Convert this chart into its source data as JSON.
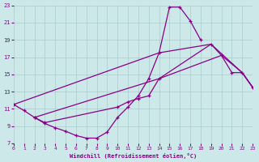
{
  "xlabel": "Windchill (Refroidissement éolien,°C)",
  "xlim": [
    0,
    23
  ],
  "ylim": [
    7,
    23
  ],
  "xticks": [
    0,
    1,
    2,
    3,
    4,
    5,
    6,
    7,
    8,
    9,
    10,
    11,
    12,
    13,
    14,
    15,
    16,
    17,
    18,
    19,
    20,
    21,
    22,
    23
  ],
  "yticks": [
    7,
    9,
    11,
    13,
    15,
    17,
    19,
    21,
    23
  ],
  "bg_color": "#cce8e8",
  "grid_color": "#aacccc",
  "line_color": "#880088",
  "line1_x": [
    0,
    1,
    2,
    3,
    4,
    5,
    6,
    7,
    8,
    9,
    10,
    11,
    12,
    13,
    14,
    15,
    16,
    17,
    18
  ],
  "line1_y": [
    11.5,
    10.8,
    10.0,
    9.3,
    8.8,
    8.4,
    7.9,
    7.6,
    7.6,
    8.3,
    10.0,
    11.2,
    12.5,
    14.5,
    17.5,
    22.8,
    22.8,
    21.2,
    19.0
  ],
  "line2_x": [
    2,
    3,
    10,
    11,
    12,
    13,
    14,
    19,
    20,
    21,
    22,
    23
  ],
  "line2_y": [
    10.0,
    9.4,
    11.2,
    11.8,
    12.2,
    12.5,
    14.5,
    18.5,
    17.2,
    15.2,
    15.2,
    13.5
  ],
  "line3_x": [
    0,
    14,
    19,
    22,
    23
  ],
  "line3_y": [
    11.5,
    17.5,
    18.5,
    15.2,
    13.5
  ],
  "line4_x": [
    2,
    14,
    20,
    22,
    23
  ],
  "line4_y": [
    10.0,
    14.5,
    17.2,
    15.2,
    13.5
  ]
}
